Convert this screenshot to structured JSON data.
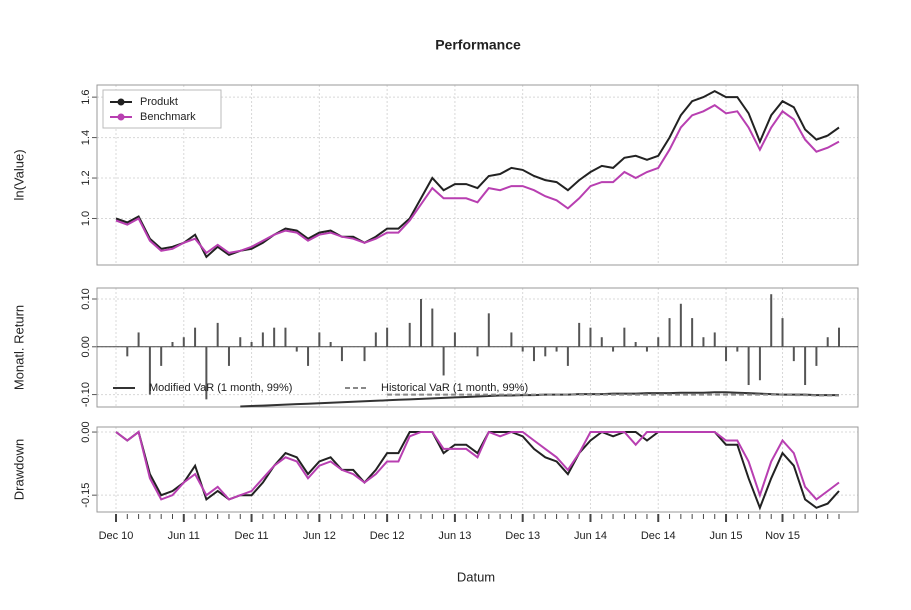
{
  "chart_data": [
    {
      "type": "line",
      "title": "Performance",
      "y_label": "ln(Value)",
      "legend": "top-left",
      "grid": true,
      "ylim": [
        0.77,
        1.66
      ],
      "yticks": [
        {
          "value": 1,
          "label": "1.0"
        },
        1.2,
        1.4,
        1.6
      ],
      "series": [
        {
          "name": "Produkt",
          "color": "#222222",
          "values": [
            1.0,
            0.98,
            1.01,
            0.9,
            0.85,
            0.86,
            0.88,
            0.92,
            0.81,
            0.86,
            0.82,
            0.84,
            0.85,
            0.88,
            0.92,
            0.95,
            0.94,
            0.9,
            0.93,
            0.94,
            0.91,
            0.91,
            0.88,
            0.91,
            0.95,
            0.95,
            1.0,
            1.1,
            1.2,
            1.14,
            1.17,
            1.17,
            1.15,
            1.21,
            1.22,
            1.25,
            1.24,
            1.21,
            1.19,
            1.18,
            1.14,
            1.19,
            1.23,
            1.26,
            1.25,
            1.3,
            1.31,
            1.29,
            1.31,
            1.4,
            1.51,
            1.58,
            1.6,
            1.63,
            1.6,
            1.6,
            1.52,
            1.38,
            1.51,
            1.58,
            1.55,
            1.44,
            1.39,
            1.41,
            1.45
          ]
        },
        {
          "name": "Benchmark",
          "color": "#b83fb1",
          "values": [
            0.99,
            0.97,
            1.0,
            0.89,
            0.84,
            0.85,
            0.88,
            0.9,
            0.83,
            0.87,
            0.83,
            0.84,
            0.86,
            0.89,
            0.92,
            0.94,
            0.93,
            0.89,
            0.92,
            0.93,
            0.91,
            0.9,
            0.88,
            0.9,
            0.93,
            0.93,
            0.99,
            1.07,
            1.15,
            1.1,
            1.1,
            1.1,
            1.08,
            1.15,
            1.14,
            1.16,
            1.16,
            1.14,
            1.11,
            1.09,
            1.05,
            1.1,
            1.16,
            1.18,
            1.18,
            1.23,
            1.2,
            1.23,
            1.25,
            1.34,
            1.45,
            1.51,
            1.53,
            1.56,
            1.52,
            1.53,
            1.45,
            1.34,
            1.45,
            1.53,
            1.49,
            1.39,
            1.33,
            1.35,
            1.38
          ]
        }
      ]
    },
    {
      "type": "bar",
      "y_label": "Monatl. Return",
      "grid": true,
      "color": "#555555",
      "ylim": [
        -0.126,
        0.123
      ],
      "yticks": [
        {
          "value": -0.1,
          "label": "-0.10"
        },
        {
          "value": 0,
          "label": "0.00"
        },
        {
          "value": 0.1,
          "label": "0.10"
        }
      ],
      "values": [
        null,
        -0.02,
        0.03,
        -0.1,
        -0.04,
        0.01,
        0.02,
        0.04,
        -0.11,
        0.05,
        -0.04,
        0.02,
        0.01,
        0.03,
        0.04,
        0.04,
        -0.01,
        -0.04,
        0.03,
        0.01,
        -0.03,
        0.0,
        -0.03,
        0.03,
        0.04,
        0.0,
        0.05,
        0.1,
        0.08,
        -0.06,
        0.03,
        0.0,
        -0.02,
        0.07,
        0.0,
        0.03,
        -0.01,
        -0.03,
        -0.02,
        -0.01,
        -0.04,
        0.05,
        0.04,
        0.02,
        -0.01,
        0.04,
        0.01,
        -0.01,
        0.02,
        0.06,
        0.09,
        0.06,
        0.02,
        0.03,
        -0.03,
        -0.01,
        -0.08,
        -0.07,
        0.11,
        0.06,
        -0.03,
        -0.08,
        -0.04,
        0.02,
        0.04
      ],
      "lines": [
        {
          "name": "Modified VaR (1 month, 99%)",
          "color": "#333333",
          "dashed": false,
          "values": [
            null,
            null,
            null,
            null,
            null,
            null,
            null,
            null,
            null,
            null,
            null,
            -0.125,
            -0.124,
            -0.123,
            -0.122,
            -0.121,
            -0.12,
            -0.119,
            -0.118,
            -0.117,
            -0.116,
            -0.115,
            -0.114,
            -0.113,
            -0.112,
            -0.111,
            -0.11,
            -0.109,
            -0.108,
            -0.107,
            -0.106,
            -0.105,
            -0.104,
            -0.103,
            -0.102,
            -0.102,
            -0.101,
            -0.101,
            -0.1,
            -0.1,
            -0.1,
            -0.099,
            -0.099,
            -0.099,
            -0.098,
            -0.098,
            -0.098,
            -0.097,
            -0.097,
            -0.097,
            -0.096,
            -0.096,
            -0.096,
            -0.095,
            -0.095,
            -0.096,
            -0.097,
            -0.098,
            -0.099,
            -0.1,
            -0.1,
            -0.1,
            -0.101,
            -0.101,
            -0.101
          ]
        },
        {
          "name": "Historical VaR (1 month, 99%)",
          "color": "#888888",
          "dashed": true,
          "values": [
            null,
            null,
            null,
            null,
            null,
            null,
            null,
            null,
            null,
            null,
            null,
            null,
            null,
            null,
            null,
            null,
            null,
            null,
            null,
            null,
            null,
            null,
            null,
            null,
            -0.1,
            -0.1,
            -0.1,
            -0.1,
            -0.1,
            -0.1,
            -0.1,
            -0.1,
            -0.1,
            -0.1,
            -0.1,
            -0.1,
            -0.1,
            -0.1,
            -0.1,
            -0.1,
            -0.1,
            -0.1,
            -0.1,
            -0.1,
            -0.1,
            -0.1,
            -0.1,
            -0.1,
            -0.1,
            -0.1,
            -0.1,
            -0.1,
            -0.1,
            -0.1,
            -0.1,
            -0.1,
            -0.1,
            -0.1,
            -0.1,
            -0.1,
            -0.101,
            -0.101,
            -0.102,
            -0.102,
            -0.102
          ]
        }
      ]
    },
    {
      "type": "line",
      "y_label": "Drawdown",
      "x_label": "Datum",
      "grid": true,
      "ylim": [
        -0.19,
        0.012
      ],
      "yticks": [
        {
          "value": -0.15,
          "label": "-0.15"
        },
        {
          "value": 0,
          "label": "0.00"
        }
      ],
      "categories": [
        "Dec 10",
        null,
        null,
        null,
        null,
        null,
        "Jun 11",
        null,
        null,
        null,
        null,
        null,
        "Dec 11",
        null,
        null,
        null,
        null,
        null,
        "Jun 12",
        null,
        null,
        null,
        null,
        null,
        "Dec 12",
        null,
        null,
        null,
        null,
        null,
        "Jun 13",
        null,
        null,
        null,
        null,
        null,
        "Dec 13",
        null,
        null,
        null,
        null,
        null,
        "Jun 14",
        null,
        null,
        null,
        null,
        null,
        "Dec 14",
        null,
        null,
        null,
        null,
        null,
        "Jun 15",
        null,
        null,
        null,
        null,
        "Nov 15",
        null,
        null,
        null,
        null,
        null
      ],
      "series": [
        {
          "name": "Produkt",
          "color": "#222222",
          "values": [
            0,
            -0.02,
            0,
            -0.1,
            -0.15,
            -0.14,
            -0.12,
            -0.08,
            -0.16,
            -0.14,
            -0.16,
            -0.15,
            -0.15,
            -0.12,
            -0.08,
            -0.05,
            -0.06,
            -0.1,
            -0.07,
            -0.06,
            -0.09,
            -0.09,
            -0.12,
            -0.09,
            -0.05,
            -0.05,
            0,
            0,
            0,
            -0.05,
            -0.03,
            -0.03,
            -0.05,
            0,
            0,
            0,
            -0.01,
            -0.04,
            -0.06,
            -0.07,
            -0.1,
            -0.05,
            -0.02,
            0,
            -0.01,
            0,
            0,
            -0.02,
            0,
            0,
            0,
            0,
            0,
            0,
            -0.03,
            -0.03,
            -0.11,
            -0.18,
            -0.11,
            -0.05,
            -0.08,
            -0.16,
            -0.18,
            -0.17,
            -0.14
          ]
        },
        {
          "name": "Benchmark",
          "color": "#b83fb1",
          "values": [
            0,
            -0.02,
            0,
            -0.11,
            -0.16,
            -0.15,
            -0.12,
            -0.1,
            -0.15,
            -0.13,
            -0.16,
            -0.15,
            -0.14,
            -0.11,
            -0.08,
            -0.06,
            -0.07,
            -0.11,
            -0.08,
            -0.07,
            -0.09,
            -0.1,
            -0.12,
            -0.1,
            -0.07,
            -0.07,
            -0.01,
            0,
            0,
            -0.04,
            -0.04,
            -0.04,
            -0.06,
            0,
            -0.01,
            0,
            0,
            -0.02,
            -0.04,
            -0.06,
            -0.09,
            -0.05,
            0,
            0,
            0,
            0,
            -0.03,
            0,
            0,
            0,
            0,
            0,
            0,
            0,
            -0.02,
            -0.02,
            -0.07,
            -0.15,
            -0.07,
            -0.02,
            -0.05,
            -0.13,
            -0.16,
            -0.14,
            -0.12
          ]
        }
      ]
    }
  ]
}
